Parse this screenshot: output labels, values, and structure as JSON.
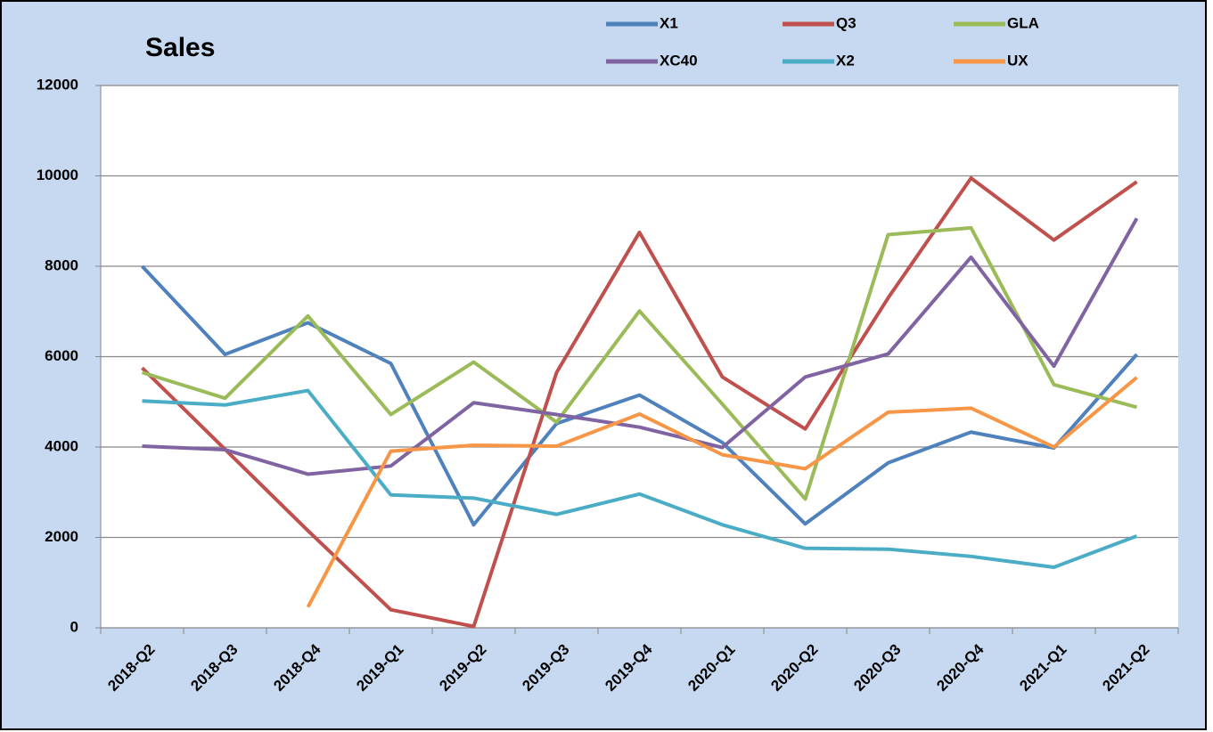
{
  "chart_data": {
    "type": "line",
    "title": "Sales",
    "categories": [
      "2018-Q2",
      "2018-Q3",
      "2018-Q4",
      "2019-Q1",
      "2019-Q2",
      "2019-Q3",
      "2019-Q4",
      "2020-Q1",
      "2020-Q2",
      "2020-Q3",
      "2020-Q4",
      "2021-Q1",
      "2021-Q2"
    ],
    "series": [
      {
        "name": "X1",
        "color": "#4f81bd",
        "values": [
          8000,
          6050,
          6750,
          5850,
          2280,
          4520,
          5150,
          4100,
          2300,
          3650,
          4330,
          3980,
          6050
        ]
      },
      {
        "name": "Q3",
        "color": "#c0504d",
        "values": [
          5750,
          3950,
          2150,
          400,
          30,
          5650,
          8750,
          5550,
          4400,
          7300,
          9950,
          8580,
          9870
        ]
      },
      {
        "name": "GLA",
        "color": "#9bbb59",
        "values": [
          5650,
          5080,
          6900,
          4720,
          5880,
          4550,
          7010,
          4950,
          2850,
          8700,
          8850,
          5380,
          4880
        ]
      },
      {
        "name": "XC40",
        "color": "#8064a2",
        "values": [
          4020,
          3940,
          3400,
          3580,
          4980,
          4720,
          4440,
          3990,
          5550,
          6060,
          8200,
          5790,
          9060
        ]
      },
      {
        "name": "X2",
        "color": "#4bacc6",
        "values": [
          5020,
          4930,
          5250,
          2940,
          2870,
          2510,
          2960,
          2280,
          1760,
          1740,
          1580,
          1340,
          2030
        ]
      },
      {
        "name": "UX",
        "color": "#f79646",
        "values": [
          null,
          null,
          460,
          3910,
          4040,
          4020,
          4730,
          3830,
          3520,
          4770,
          4860,
          4000,
          5540
        ]
      }
    ],
    "ylim": [
      0,
      12000
    ],
    "yticks": [
      0,
      2000,
      4000,
      6000,
      8000,
      10000,
      12000
    ],
    "grid": true,
    "legend": "top"
  }
}
